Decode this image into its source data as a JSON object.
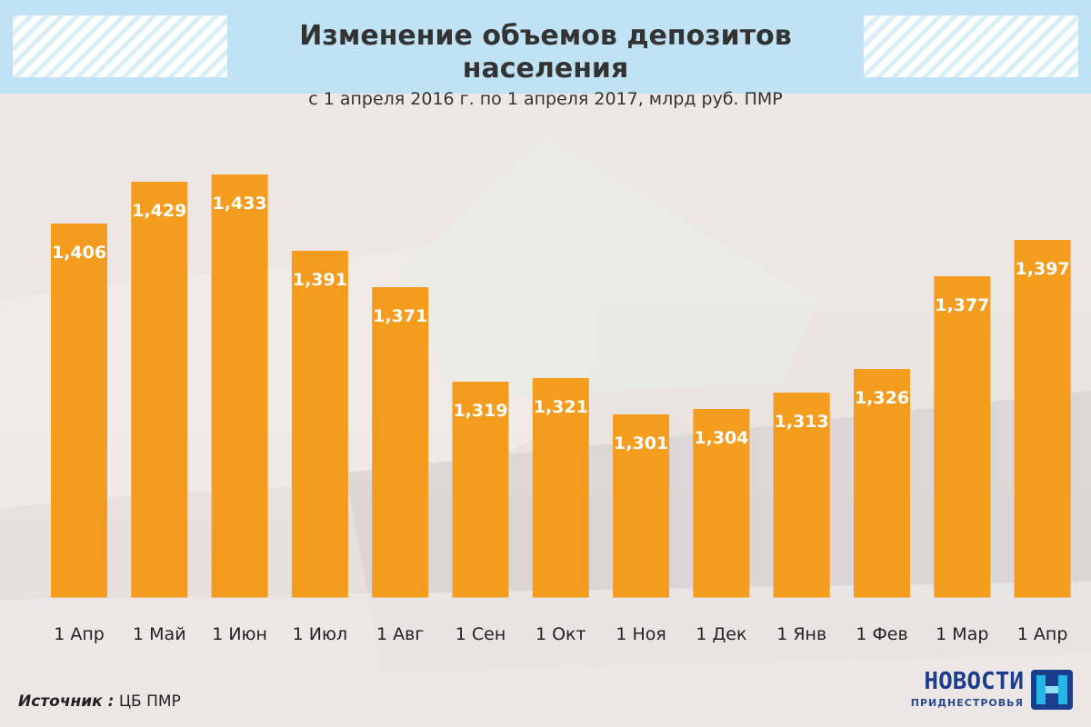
{
  "header": {
    "title": "Изменение объемов депозитов населения",
    "subtitle": "с 1 апреля 2016 г. по 1 апреля 2017, млрд руб. ПМР"
  },
  "chart_data": {
    "type": "bar",
    "title": "Изменение объемов депозитов населения",
    "subtitle": "с 1 апреля 2016 г. по 1 апреля 2017, млрд руб. ПМР",
    "categories": [
      "1 Апр",
      "1 Май",
      "1 Июн",
      "1 Июл",
      "1 Авг",
      "1 Сен",
      "1 Окт",
      "1 Ноя",
      "1 Дек",
      "1 Янв",
      "1 Фев",
      "1 Мар",
      "1 Апр"
    ],
    "values": [
      1.406,
      1.429,
      1.433,
      1.391,
      1.371,
      1.319,
      1.321,
      1.301,
      1.304,
      1.313,
      1.326,
      1.377,
      1.397
    ],
    "value_labels": [
      "1,406",
      "1,429",
      "1,433",
      "1,391",
      "1,371",
      "1,319",
      "1,321",
      "1,301",
      "1,304",
      "1,313",
      "1,326",
      "1,377",
      "1,397"
    ],
    "xlabel": "",
    "ylabel": "",
    "grid": false,
    "legend": "none",
    "bar_color": "#f49c1e"
  },
  "footer": {
    "source_label": "Источник :",
    "source_value": "ЦБ ПМР"
  },
  "logo": {
    "word": "НОВОСТИ",
    "sub": "ПРИДНЕСТРОВЬЯ"
  },
  "colors": {
    "accent": "#f49c1e",
    "header_bg": "#bfe2f4",
    "logo_blue": "#1a3d8c",
    "logo_cyan": "#22b7e6"
  }
}
